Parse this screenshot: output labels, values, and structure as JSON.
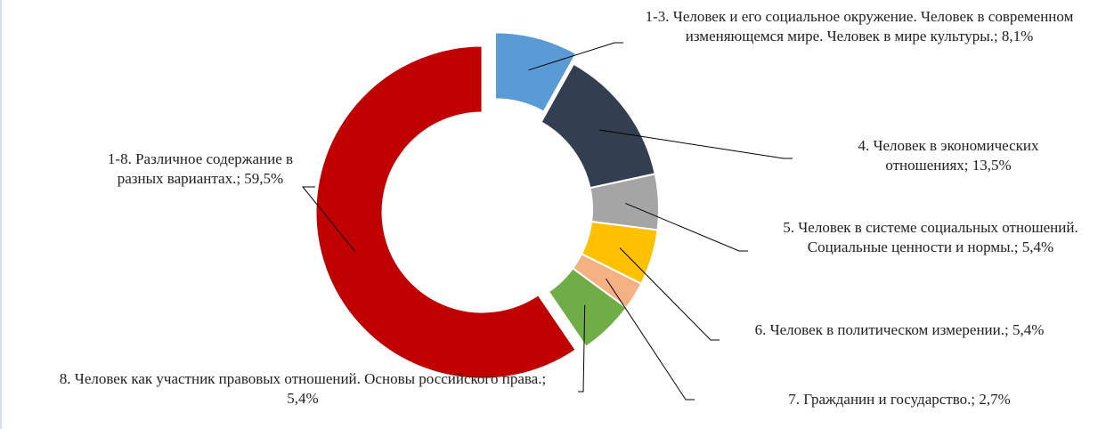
{
  "chart_data": {
    "type": "donut",
    "categories": [
      "1-3. Человек и его социальное окружение. Человек в современном изменяющемся мире. Человек в мире культуры.;",
      "4. Человек в экономических отношениях;",
      "5. Человек в системе социальных отношений. Социальные ценности и нормы.;",
      "6. Человек в политическом измерении.;",
      "7. Гражданин и государство.;",
      "8. Человек как участник правовых отношений. Основы российского права.;",
      "1-8. Различное содержание в разных вариантах.;"
    ],
    "values": [
      8.1,
      13.5,
      5.4,
      5.4,
      2.7,
      5.4,
      59.5
    ],
    "value_labels": [
      "8,1%",
      "13,5%",
      "5,4%",
      "5,4%",
      "2,7%",
      "5,4%",
      "59,5%"
    ],
    "colors": [
      "#5b9bd5",
      "#333f50",
      "#a5a5a5",
      "#ffc000",
      "#f4b183",
      "#70ad47",
      "#c00000"
    ]
  }
}
